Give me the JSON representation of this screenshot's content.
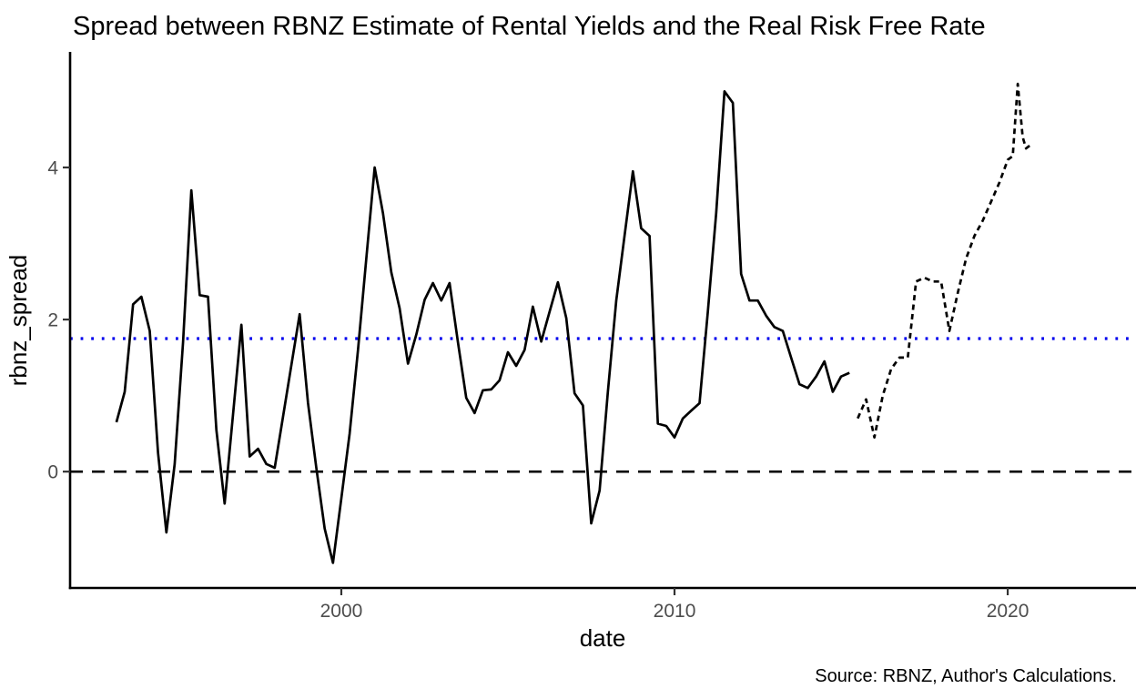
{
  "figure": {
    "title": "Spread between RBNZ Estimate of Rental Yields and the Real Risk Free Rate",
    "source_note": "Source: RBNZ, Author's Calculations."
  },
  "chart_data": {
    "type": "line",
    "title": "Spread between RBNZ Estimate of Rental Yields and the Real Risk Free Rate",
    "xlabel": "date",
    "ylabel": "rbnz_spread",
    "grid": false,
    "legend": "none",
    "xlim": [
      1991.86,
      2023.85
    ],
    "ylim": [
      -1.53,
      5.52
    ],
    "x_ticks": [
      {
        "value": 2000,
        "label": "2000"
      },
      {
        "value": 2010,
        "label": "2010"
      },
      {
        "value": 2020,
        "label": "2020"
      }
    ],
    "y_ticks": [
      {
        "value": 0,
        "label": "0"
      },
      {
        "value": 2,
        "label": "2"
      },
      {
        "value": 4,
        "label": "4"
      }
    ],
    "colors": {
      "series_line": "#000000",
      "zero_line": "#000000",
      "mean_line": "#0000EE",
      "axis_line": "#000000",
      "tick_text": "#4d4d4d",
      "label_text": "#000000"
    },
    "reference_lines": [
      {
        "name": "zero-line",
        "orientation": "horizontal",
        "y": 0,
        "linetype": "dashed",
        "color": "#000000"
      },
      {
        "name": "mean-spread-line",
        "orientation": "horizontal",
        "y": 1.75,
        "linetype": "dotted",
        "color": "#0000EE"
      }
    ],
    "series": [
      {
        "name": "rbnz_spread_history",
        "linetype": "solid",
        "color": "#000000",
        "points": [
          [
            1993.25,
            0.65
          ],
          [
            1993.5,
            1.05
          ],
          [
            1993.75,
            2.2
          ],
          [
            1994.0,
            2.3
          ],
          [
            1994.25,
            1.85
          ],
          [
            1994.5,
            0.25
          ],
          [
            1994.75,
            -0.8
          ],
          [
            1995.0,
            0.1
          ],
          [
            1995.25,
            1.7
          ],
          [
            1995.5,
            3.7
          ],
          [
            1995.75,
            2.32
          ],
          [
            1996.0,
            2.3
          ],
          [
            1996.25,
            0.55
          ],
          [
            1996.5,
            -0.42
          ],
          [
            1996.75,
            0.75
          ],
          [
            1997.0,
            1.93
          ],
          [
            1997.25,
            0.2
          ],
          [
            1997.5,
            0.3
          ],
          [
            1997.75,
            0.1
          ],
          [
            1998.0,
            0.05
          ],
          [
            1998.25,
            0.72
          ],
          [
            1998.5,
            1.4
          ],
          [
            1998.75,
            2.07
          ],
          [
            1999.0,
            0.9
          ],
          [
            1999.25,
            0.05
          ],
          [
            1999.5,
            -0.75
          ],
          [
            1999.75,
            -1.2
          ],
          [
            2000.0,
            -0.35
          ],
          [
            2000.25,
            0.5
          ],
          [
            2000.5,
            1.6
          ],
          [
            2000.75,
            2.8
          ],
          [
            2001.0,
            4.0
          ],
          [
            2001.25,
            3.4
          ],
          [
            2001.5,
            2.62
          ],
          [
            2001.75,
            2.15
          ],
          [
            2002.0,
            1.42
          ],
          [
            2002.25,
            1.8
          ],
          [
            2002.5,
            2.26
          ],
          [
            2002.75,
            2.48
          ],
          [
            2003.0,
            2.25
          ],
          [
            2003.25,
            2.48
          ],
          [
            2003.5,
            1.7
          ],
          [
            2003.75,
            0.97
          ],
          [
            2004.0,
            0.77
          ],
          [
            2004.25,
            1.07
          ],
          [
            2004.5,
            1.08
          ],
          [
            2004.75,
            1.2
          ],
          [
            2005.0,
            1.57
          ],
          [
            2005.25,
            1.39
          ],
          [
            2005.5,
            1.6
          ],
          [
            2005.75,
            2.17
          ],
          [
            2006.0,
            1.71
          ],
          [
            2006.25,
            2.1
          ],
          [
            2006.5,
            2.49
          ],
          [
            2006.75,
            2.02
          ],
          [
            2007.0,
            1.03
          ],
          [
            2007.25,
            0.87
          ],
          [
            2007.5,
            -0.68
          ],
          [
            2007.75,
            -0.25
          ],
          [
            2008.0,
            1.05
          ],
          [
            2008.25,
            2.25
          ],
          [
            2008.5,
            3.1
          ],
          [
            2008.75,
            3.95
          ],
          [
            2009.0,
            3.2
          ],
          [
            2009.25,
            3.1
          ],
          [
            2009.5,
            0.63
          ],
          [
            2009.75,
            0.6
          ],
          [
            2010.0,
            0.45
          ],
          [
            2010.25,
            0.7
          ],
          [
            2010.5,
            0.8
          ],
          [
            2010.75,
            0.9
          ],
          [
            2011.0,
            2.1
          ],
          [
            2011.25,
            3.4
          ],
          [
            2011.5,
            5.0
          ],
          [
            2011.75,
            4.85
          ],
          [
            2012.0,
            2.6
          ],
          [
            2012.25,
            2.25
          ],
          [
            2012.5,
            2.25
          ],
          [
            2012.75,
            2.05
          ],
          [
            2013.0,
            1.9
          ],
          [
            2013.25,
            1.85
          ],
          [
            2013.5,
            1.5
          ],
          [
            2013.75,
            1.15
          ],
          [
            2014.0,
            1.1
          ],
          [
            2014.25,
            1.25
          ],
          [
            2014.5,
            1.45
          ],
          [
            2014.75,
            1.05
          ],
          [
            2015.0,
            1.25
          ],
          [
            2015.25,
            1.3
          ]
        ]
      },
      {
        "name": "rbnz_spread_recent",
        "linetype": "dotted",
        "color": "#000000",
        "points": [
          [
            2015.5,
            0.7
          ],
          [
            2015.75,
            0.95
          ],
          [
            2016.0,
            0.45
          ],
          [
            2016.25,
            1.0
          ],
          [
            2016.5,
            1.35
          ],
          [
            2016.75,
            1.5
          ],
          [
            2017.0,
            1.5
          ],
          [
            2017.25,
            2.5
          ],
          [
            2017.5,
            2.55
          ],
          [
            2017.75,
            2.5
          ],
          [
            2018.0,
            2.5
          ],
          [
            2018.25,
            1.85
          ],
          [
            2018.5,
            2.35
          ],
          [
            2018.75,
            2.8
          ],
          [
            2019.0,
            3.1
          ],
          [
            2019.25,
            3.3
          ],
          [
            2019.5,
            3.55
          ],
          [
            2019.75,
            3.8
          ],
          [
            2020.0,
            4.1
          ],
          [
            2020.15,
            4.15
          ],
          [
            2020.3,
            5.1
          ],
          [
            2020.45,
            4.4
          ],
          [
            2020.55,
            4.25
          ],
          [
            2020.7,
            4.3
          ]
        ]
      }
    ]
  }
}
